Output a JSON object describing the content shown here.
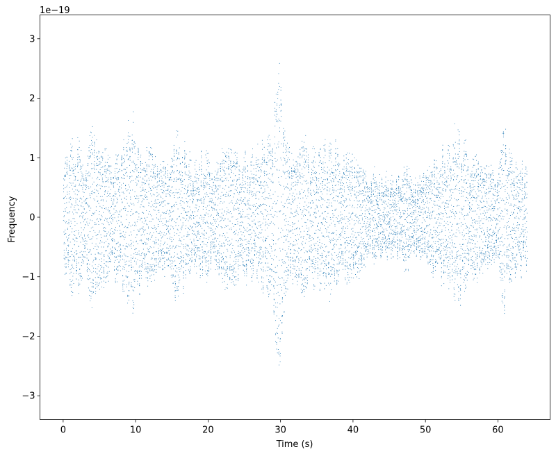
{
  "chart_data": {
    "type": "scatter",
    "title": "",
    "xlabel": "Time (s)",
    "ylabel": "Frequency",
    "offset_label": "1e−19",
    "xlim": [
      -3.2,
      67.2
    ],
    "ylim": [
      -3.4,
      3.4
    ],
    "x_ticks": [
      0,
      10,
      20,
      30,
      40,
      50,
      60
    ],
    "x_tick_labels": [
      "0",
      "10",
      "20",
      "30",
      "40",
      "50",
      "60"
    ],
    "y_ticks": [
      3,
      2,
      1,
      0,
      -1,
      -2,
      -3
    ],
    "y_tick_labels": [
      "3",
      "2",
      "1",
      "0",
      "−1",
      "−2",
      "−3"
    ],
    "grid": false,
    "marker": "point",
    "color": "#1f77b4",
    "series": [
      {
        "x_range": [
          0,
          64
        ],
        "y_scale": "1e-19",
        "envelope": [
          [
            0,
            1.0
          ],
          [
            1,
            1.4
          ],
          [
            2,
            1.3
          ],
          [
            3,
            1.2
          ],
          [
            3.8,
            1.9
          ],
          [
            4.5,
            1.4
          ],
          [
            5.5,
            1.1
          ],
          [
            7,
            1.1
          ],
          [
            8,
            1.3
          ],
          [
            9.5,
            1.8
          ],
          [
            10.5,
            1.3
          ],
          [
            12,
            1.2
          ],
          [
            13,
            1.1
          ],
          [
            14,
            1.3
          ],
          [
            15.5,
            1.5
          ],
          [
            17,
            1.2
          ],
          [
            18,
            0.9
          ],
          [
            19.5,
            1.2
          ],
          [
            21,
            1.0
          ],
          [
            22.5,
            1.2
          ],
          [
            24,
            1.2
          ],
          [
            25.5,
            1.1
          ],
          [
            27,
            1.2
          ],
          [
            28.5,
            1.6
          ],
          [
            29.5,
            2.6
          ],
          [
            30,
            3.0
          ],
          [
            30.5,
            2.2
          ],
          [
            31.5,
            1.8
          ],
          [
            33,
            1.5
          ],
          [
            34,
            1.2
          ],
          [
            35.5,
            1.3
          ],
          [
            37,
            1.4
          ],
          [
            38.5,
            1.2
          ],
          [
            40,
            1.0
          ],
          [
            41.5,
            0.9
          ],
          [
            43,
            0.8
          ],
          [
            44.5,
            0.7
          ],
          [
            46,
            0.7
          ],
          [
            47.5,
            0.9
          ],
          [
            49,
            0.9
          ],
          [
            50.5,
            0.9
          ],
          [
            52,
            1.1
          ],
          [
            53.5,
            1.3
          ],
          [
            54.5,
            1.7
          ],
          [
            55.5,
            1.3
          ],
          [
            57,
            1.0
          ],
          [
            58.5,
            0.9
          ],
          [
            60,
            1.1
          ],
          [
            60.8,
            1.8
          ],
          [
            61.5,
            1.3
          ],
          [
            62.5,
            1.0
          ],
          [
            64,
            0.9
          ]
        ]
      }
    ]
  }
}
